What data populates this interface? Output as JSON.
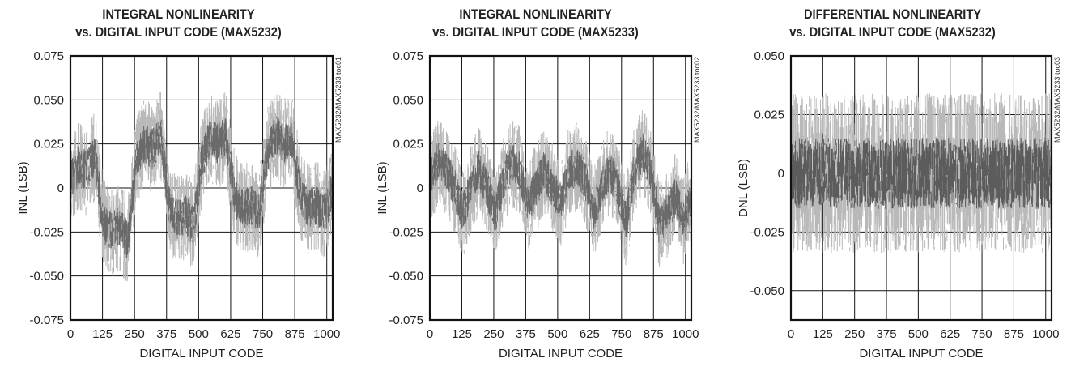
{
  "chart_data": [
    {
      "type": "line",
      "title_line1": "INTEGRAL NONLINEARITY",
      "title_line2": "vs. DIGITAL INPUT CODE (MAX5232)",
      "xlabel": "DIGITAL INPUT CODE",
      "ylabel": "INL (LSB)",
      "side_code": "MAX5232/MAX5233 toc01",
      "xlim": [
        0,
        1023
      ],
      "ylim": [
        -0.075,
        0.075
      ],
      "x_ticks": [
        "0",
        "125",
        "250",
        "375",
        "500",
        "625",
        "750",
        "875",
        "1000"
      ],
      "y_ticks": [
        "0.075",
        "0.050",
        "0.025",
        "0",
        "-0.025",
        "-0.050",
        "-0.075"
      ],
      "grid": true,
      "series": [
        {
          "x": [
            0,
            32,
            64,
            96,
            128,
            160,
            192,
            224,
            256,
            288,
            320,
            352,
            384,
            416,
            448,
            480,
            512,
            544,
            576,
            608,
            640,
            672,
            704,
            736,
            768,
            800,
            832,
            864,
            896,
            928,
            960,
            992,
            1023
          ],
          "values": [
            0.005,
            0.012,
            0.01,
            0.018,
            -0.02,
            -0.025,
            -0.022,
            -0.03,
            0.015,
            0.025,
            0.022,
            0.03,
            -0.01,
            -0.018,
            -0.015,
            -0.022,
            0.015,
            0.028,
            0.025,
            0.03,
            -0.005,
            -0.012,
            -0.01,
            -0.015,
            0.02,
            0.03,
            0.025,
            0.028,
            -0.005,
            -0.012,
            -0.01,
            -0.015,
            0.0
          ],
          "noise_amplitude": 0.03
        }
      ]
    },
    {
      "type": "line",
      "title_line1": "INTEGRAL NONLINEARITY",
      "title_line2": "vs. DIGITAL INPUT CODE (MAX5233)",
      "xlabel": "DIGITAL INPUT CODE",
      "ylabel": "INL (LSB)",
      "side_code": "MAX5232/MAX5233 toc02",
      "xlim": [
        0,
        1023
      ],
      "ylim": [
        -0.075,
        0.075
      ],
      "x_ticks": [
        "0",
        "125",
        "250",
        "375",
        "500",
        "625",
        "750",
        "875",
        "1000"
      ],
      "y_ticks": [
        "0.075",
        "0.050",
        "0.025",
        "0",
        "-0.025",
        "-0.050",
        "-0.075"
      ],
      "grid": true,
      "series": [
        {
          "x": [
            0,
            32,
            64,
            96,
            128,
            160,
            192,
            224,
            256,
            288,
            320,
            352,
            384,
            416,
            448,
            480,
            512,
            544,
            576,
            608,
            640,
            672,
            704,
            736,
            768,
            800,
            832,
            864,
            896,
            928,
            960,
            992,
            1023
          ],
          "values": [
            0.005,
            0.015,
            0.01,
            0.0,
            -0.015,
            0.0,
            0.01,
            0.0,
            -0.015,
            0.005,
            0.015,
            0.01,
            -0.01,
            0.0,
            0.01,
            0.0,
            -0.008,
            0.01,
            0.012,
            0.005,
            -0.015,
            0.0,
            0.01,
            0.0,
            -0.02,
            0.01,
            0.02,
            0.01,
            -0.02,
            -0.015,
            -0.005,
            -0.018,
            -0.005
          ],
          "noise_amplitude": 0.03
        }
      ]
    },
    {
      "type": "line",
      "title_line1": "DIFFERENTIAL NONLINEARITY",
      "title_line2": "vs. DIGITAL INPUT CODE (MAX5232)",
      "xlabel": "DIGITAL INPUT CODE",
      "ylabel": "DNL (LSB)",
      "side_code": "MAX5232/MAX5233 toc03",
      "xlim": [
        0,
        1023
      ],
      "ylim": [
        -0.0625,
        0.05
      ],
      "x_ticks": [
        "0",
        "125",
        "250",
        "375",
        "500",
        "625",
        "750",
        "875",
        "1000"
      ],
      "y_ticks": [
        "0.050",
        "0.025",
        "0",
        "-0.025",
        "-0.050"
      ],
      "grid": true,
      "series": [
        {
          "x": [
            0,
            1023
          ],
          "values": [
            0.0,
            0.0
          ],
          "noise_amplitude": 0.04
        }
      ]
    }
  ]
}
